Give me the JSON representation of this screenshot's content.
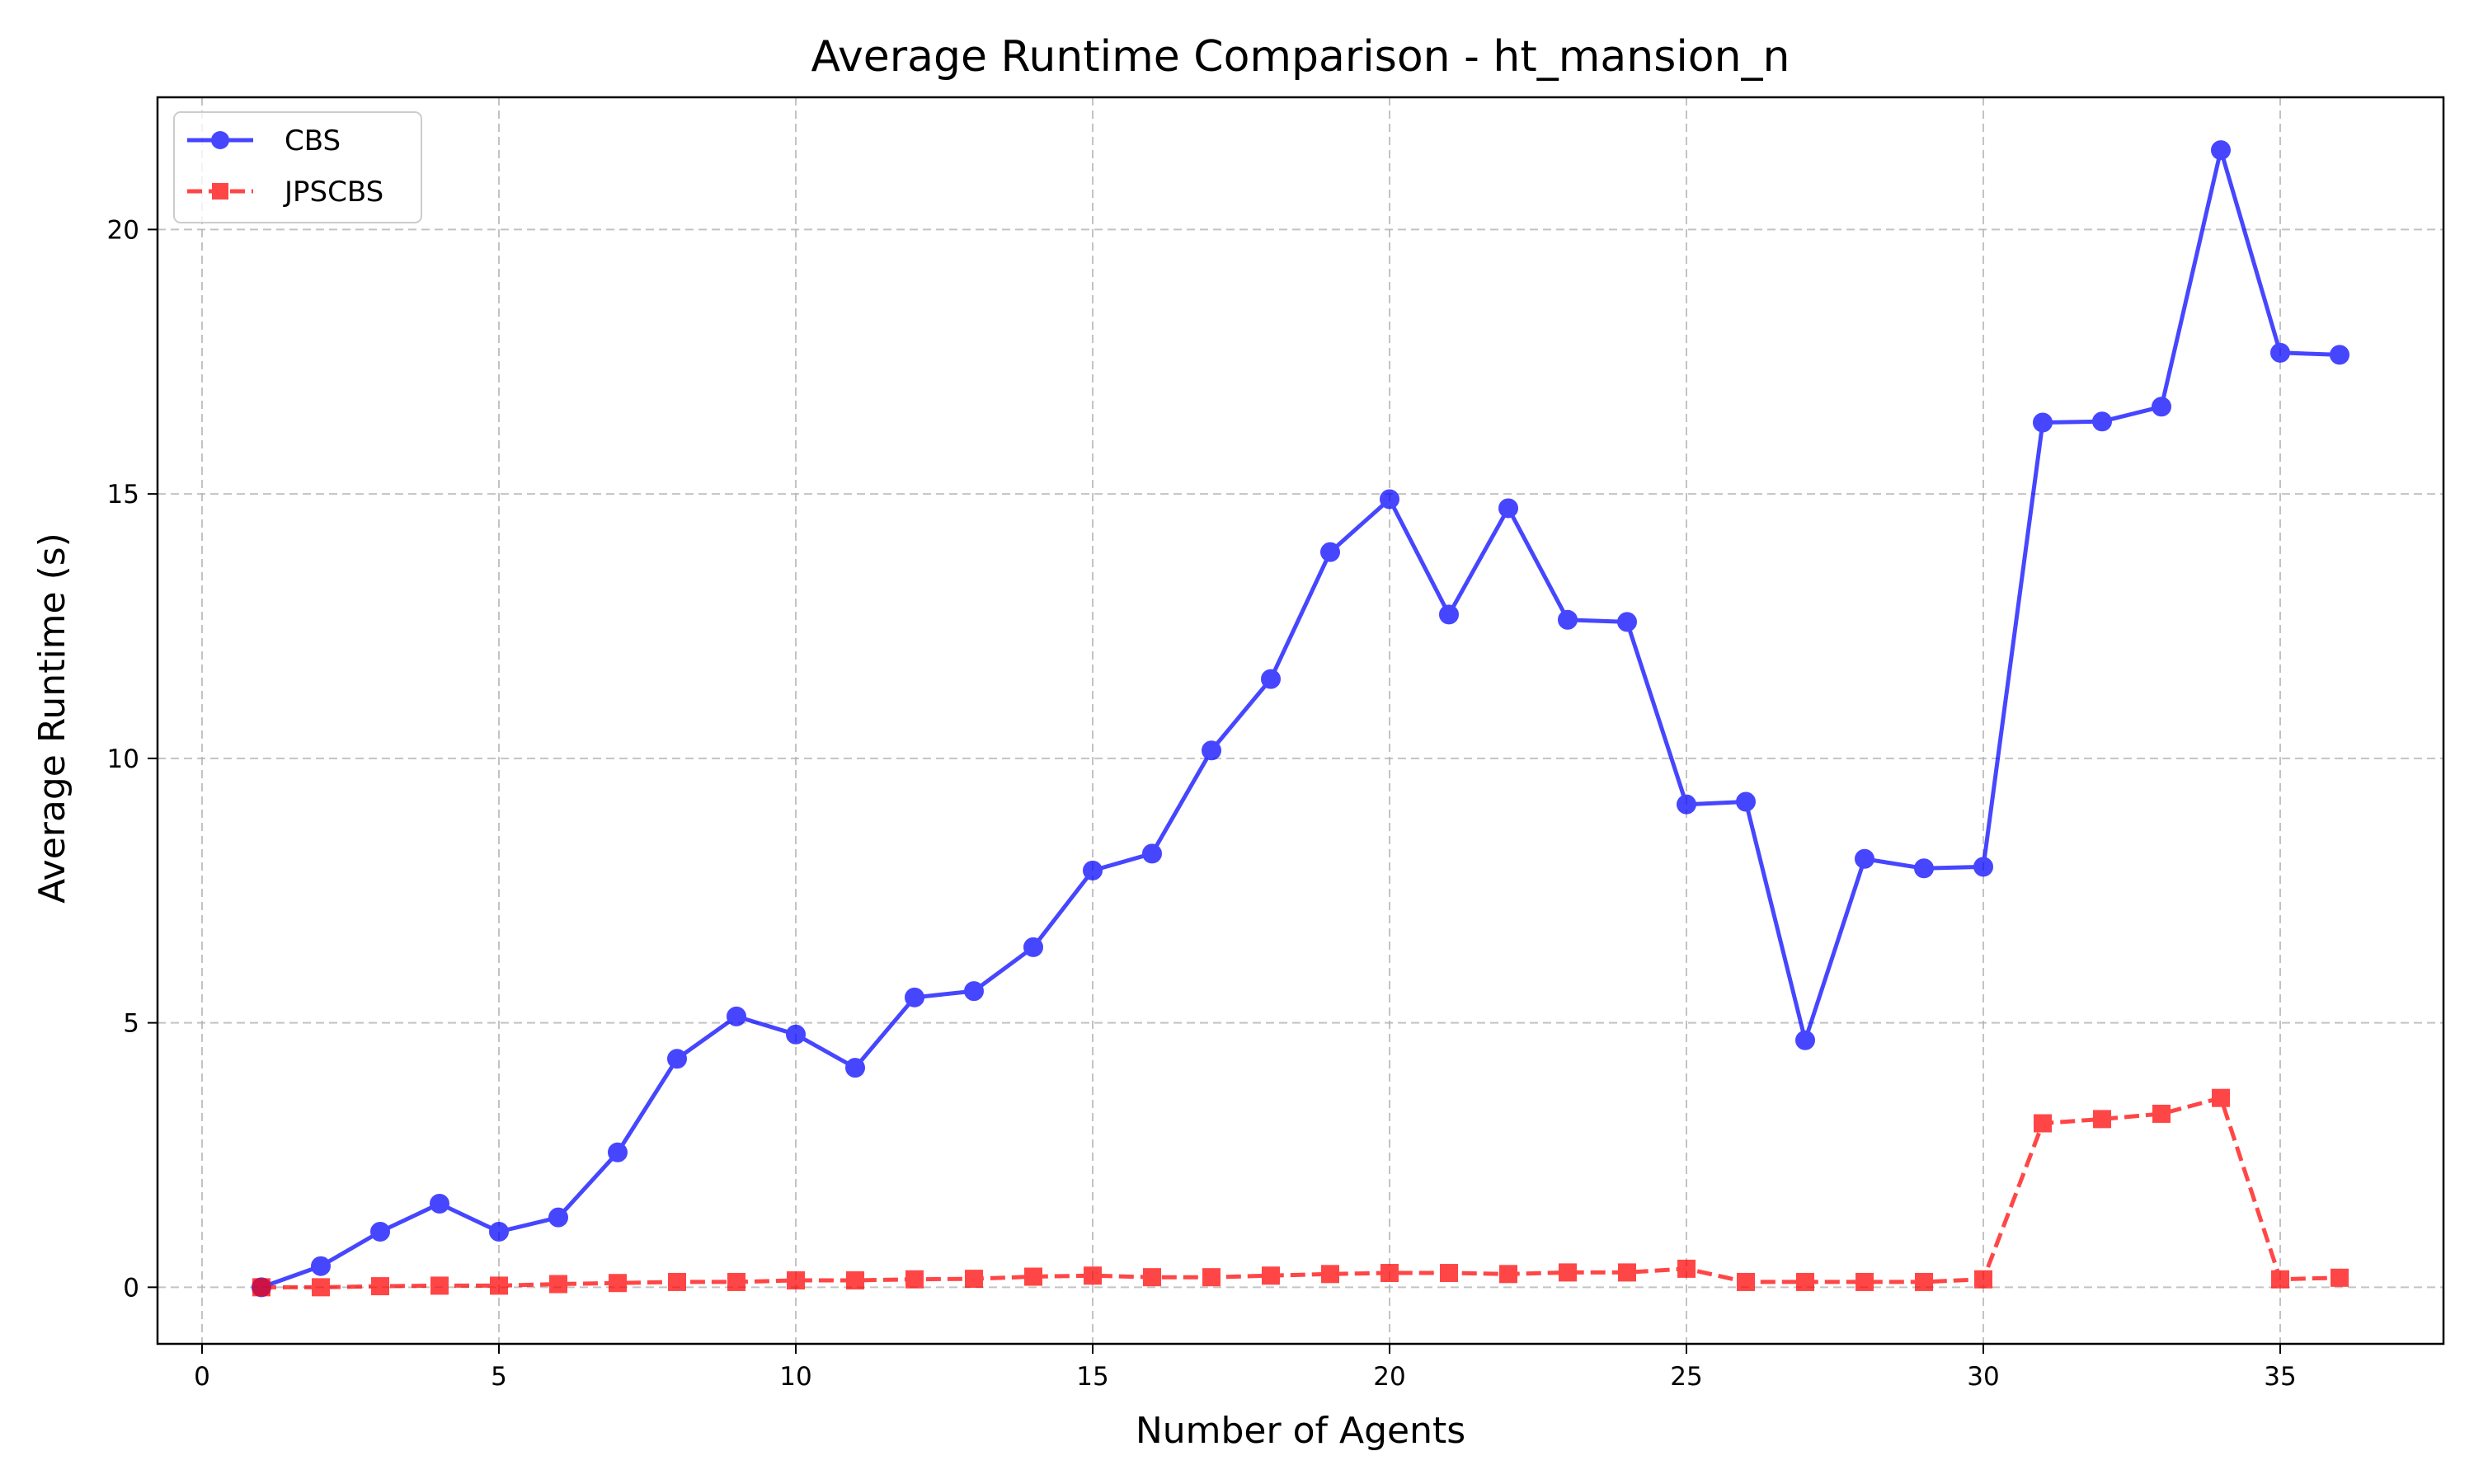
{
  "chart_data": {
    "type": "line",
    "title": "Average Runtime Comparison - ht_mansion_n",
    "xlabel": "Number of Agents",
    "ylabel": "Average Runtime (s)",
    "xlim": [
      -0.75,
      37.75
    ],
    "ylim": [
      -1.07,
      22.5
    ],
    "xticks": [
      0,
      5,
      10,
      15,
      20,
      25,
      30,
      35
    ],
    "yticks": [
      0,
      5,
      10,
      15,
      20
    ],
    "grid": true,
    "legend_position": "top-left",
    "x": [
      1,
      2,
      3,
      4,
      5,
      6,
      7,
      8,
      9,
      10,
      11,
      12,
      13,
      14,
      15,
      16,
      17,
      18,
      19,
      20,
      21,
      22,
      23,
      24,
      25,
      26,
      27,
      28,
      29,
      30,
      31,
      32,
      33,
      34,
      35,
      36
    ],
    "series": [
      {
        "name": "CBS",
        "color": "#0000ff",
        "marker": "circle",
        "linestyle": "solid",
        "values": [
          0.0,
          0.4,
          1.05,
          1.58,
          1.05,
          1.32,
          2.55,
          4.32,
          5.12,
          4.78,
          4.15,
          5.48,
          5.6,
          6.43,
          7.88,
          8.2,
          10.15,
          11.5,
          13.9,
          14.9,
          12.72,
          14.73,
          12.62,
          12.58,
          9.13,
          9.18,
          4.67,
          8.1,
          7.92,
          7.95,
          16.35,
          16.37,
          16.65,
          21.5,
          17.67,
          17.63
        ]
      },
      {
        "name": "JPSCBS",
        "color": "#ff0000",
        "marker": "square",
        "linestyle": "dashed",
        "values": [
          0.0,
          0.0,
          0.02,
          0.03,
          0.03,
          0.06,
          0.08,
          0.1,
          0.1,
          0.13,
          0.13,
          0.15,
          0.16,
          0.2,
          0.22,
          0.19,
          0.19,
          0.22,
          0.25,
          0.27,
          0.27,
          0.25,
          0.28,
          0.28,
          0.35,
          0.1,
          0.1,
          0.1,
          0.1,
          0.15,
          3.1,
          3.18,
          3.28,
          3.58,
          0.15,
          0.18
        ]
      }
    ]
  }
}
